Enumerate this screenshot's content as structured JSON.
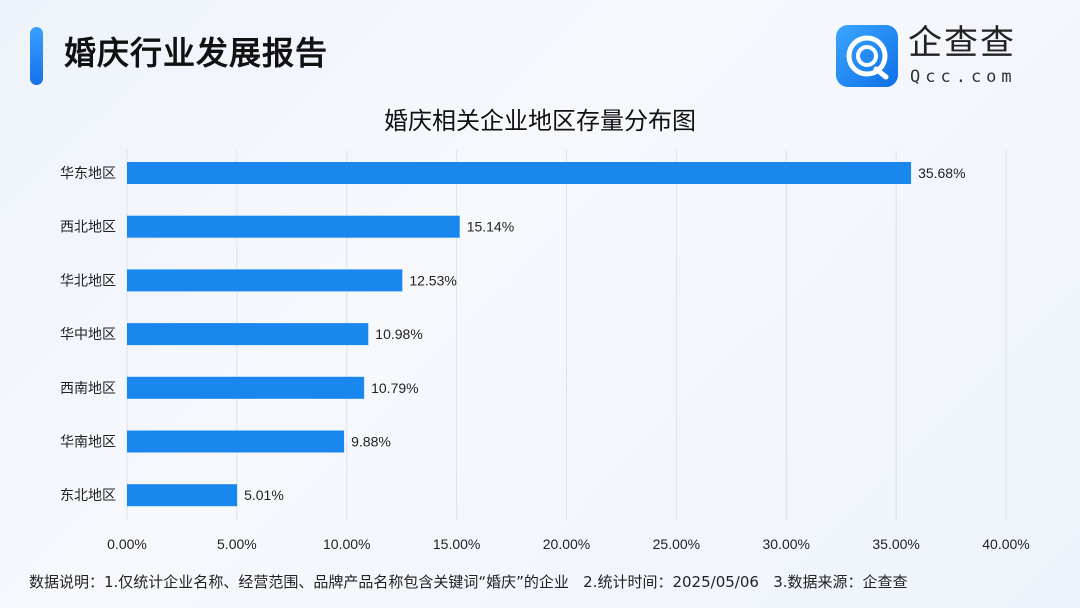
{
  "header": {
    "title": "婚庆行业发展报告",
    "logo_name": "企查查",
    "logo_url": "Qcc.com",
    "accent_color": "#1a7ff0"
  },
  "chart_data": {
    "type": "bar",
    "orientation": "horizontal",
    "title": "婚庆相关企业地区存量分布图",
    "categories": [
      "华东地区",
      "西北地区",
      "华北地区",
      "华中地区",
      "西南地区",
      "华南地区",
      "东北地区"
    ],
    "values": [
      35.68,
      15.14,
      12.53,
      10.98,
      10.79,
      9.88,
      5.01
    ],
    "data_labels": [
      "35.68%",
      "15.14%",
      "12.53%",
      "10.98%",
      "10.79%",
      "9.88%",
      "5.01%"
    ],
    "xlim": [
      0,
      40
    ],
    "x_ticks": [
      "0.00%",
      "5.00%",
      "10.00%",
      "15.00%",
      "20.00%",
      "25.00%",
      "30.00%",
      "35.00%",
      "40.00%"
    ],
    "grid": "vertical",
    "bar_color": "#1a87ee",
    "xlabel": "",
    "ylabel": ""
  },
  "footer": {
    "note": "数据说明：1.仅统计企业名称、经营范围、品牌产品名称包含关键词“婚庆”的企业   2.统计时间：2025/05/06   3.数据来源：企查查"
  }
}
